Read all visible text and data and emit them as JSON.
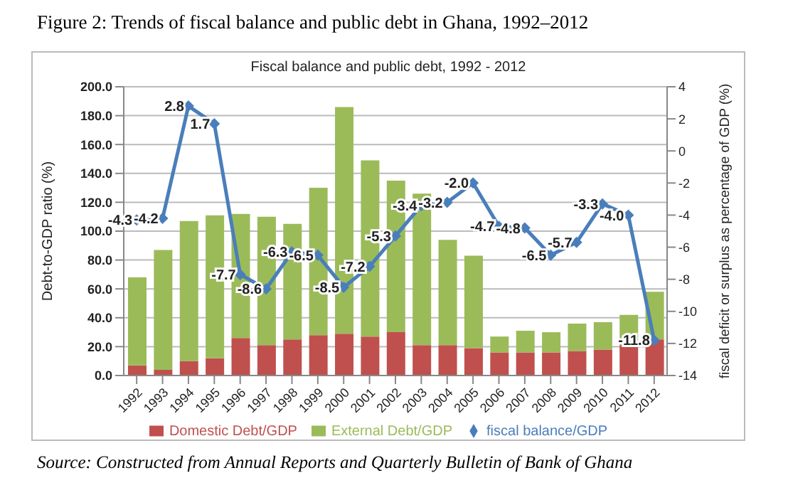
{
  "chart_data": {
    "type": "bar",
    "title": "Fiscal balance and public debt, 1992 - 2012",
    "ylabel": "Debt-to-GDP ratio (%)",
    "y2label": "fiscal deficit or surplus as percentage of GDP (%)",
    "annotations": [
      "Figure 2: Trends of fiscal balance and public debt in Ghana, 1992–2012",
      "Source: Constructed from Annual Reports and Quarterly Bulletin of Bank of Ghana"
    ],
    "categories": [
      "1992",
      "1993",
      "1994",
      "1995",
      "1996",
      "1997",
      "1998",
      "1999",
      "2000",
      "2001",
      "2002",
      "2003",
      "2004",
      "2005",
      "2006",
      "2007",
      "2008",
      "2009",
      "2010",
      "2011",
      "2012"
    ],
    "stacked": true,
    "series": [
      {
        "name": "Domestic Debt/GDP",
        "color": "#c0504d",
        "values": [
          7,
          4,
          10,
          12,
          26,
          21,
          25,
          28,
          29,
          27,
          30,
          21,
          21,
          19,
          16,
          16,
          16,
          17,
          18,
          21,
          25
        ]
      },
      {
        "name": "External Debt/GDP",
        "color": "#9bbb59",
        "values": [
          61,
          83,
          97,
          99,
          86,
          89,
          80,
          102,
          157,
          122,
          105,
          105,
          73,
          64,
          11,
          15,
          14,
          19,
          19,
          21,
          33
        ]
      },
      {
        "name": "fiscal balance/GDP",
        "type": "line",
        "axis": "y2",
        "color": "#4a7ebb",
        "marker": "diamond",
        "values": [
          -4.3,
          -4.2,
          2.8,
          1.7,
          -7.7,
          -8.6,
          -6.3,
          -6.5,
          -8.5,
          -7.2,
          -5.3,
          -3.4,
          -3.2,
          -2.0,
          -4.7,
          -4.8,
          -6.5,
          -5.7,
          -3.3,
          -4.0,
          -11.8
        ],
        "value_labels": [
          "-4.3",
          "-4.2",
          "2.8",
          "1.7",
          "-7.7",
          "-8.6",
          "-6.3",
          "-6.5",
          "-8.5",
          "-7.2",
          "-5.3",
          "-3.4",
          "-3.2",
          "-2.0",
          "-4.7",
          "-4.8",
          "-6.5",
          "-5.7",
          "-3.3",
          "-4.0",
          "-11.8"
        ]
      }
    ],
    "ylim": [
      0,
      200
    ],
    "yticks": [
      {
        "value": 0,
        "label": "0.0"
      },
      {
        "value": 20,
        "label": "20.0"
      },
      {
        "value": 40,
        "label": "40.0"
      },
      {
        "value": 60,
        "label": "60.0"
      },
      {
        "value": 80,
        "label": "80.0"
      },
      {
        "value": 100,
        "label": "100.0"
      },
      {
        "value": 120,
        "label": "120.0"
      },
      {
        "value": 140,
        "label": "140.0"
      },
      {
        "value": 160,
        "label": "160.0"
      },
      {
        "value": 180,
        "label": "180.0"
      },
      {
        "value": 200,
        "label": "200.0"
      }
    ],
    "y2lim": [
      -14,
      4
    ],
    "y2ticks": [
      -14,
      -12,
      -10,
      -8,
      -6,
      -4,
      -2,
      0,
      2,
      4
    ],
    "grid": "y",
    "legend": "bottom"
  }
}
